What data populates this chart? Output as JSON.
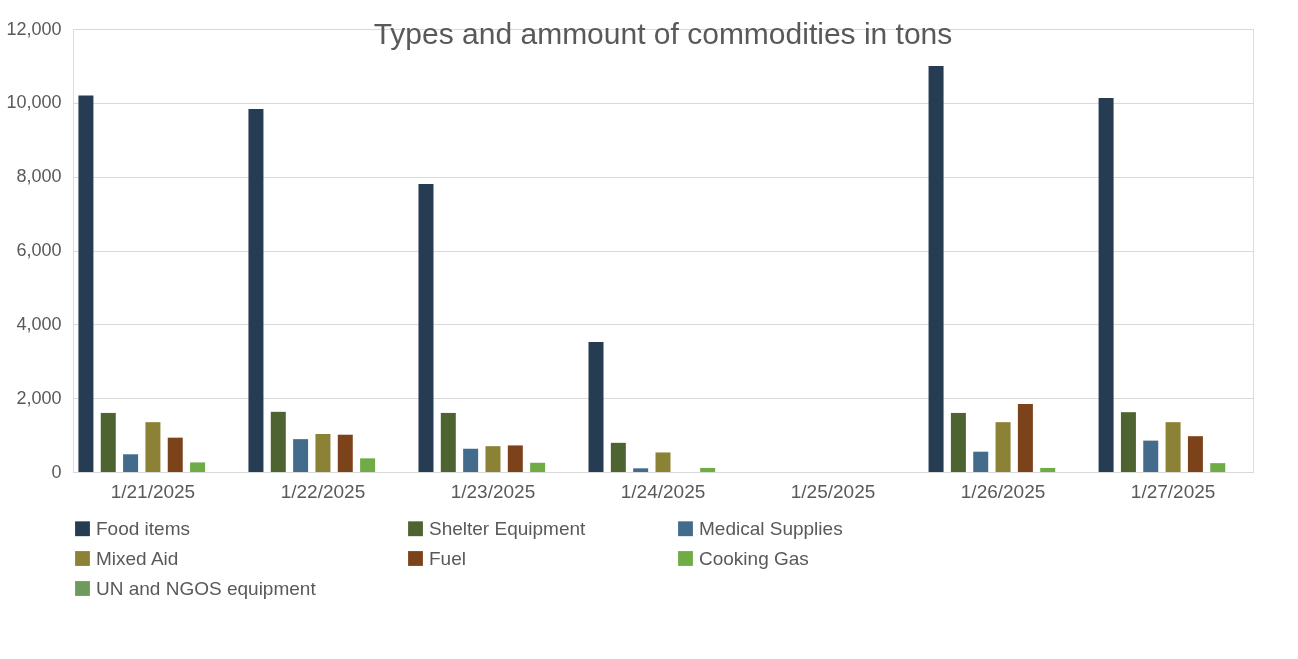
{
  "chart_data": {
    "type": "bar",
    "title": "Types and ammount of commodities in tons",
    "categories": [
      "1/21/2025",
      "1/22/2025",
      "1/23/2025",
      "1/24/2025",
      "1/25/2025",
      "1/26/2025",
      "1/27/2025"
    ],
    "series": [
      {
        "name": "Food items",
        "color": "#263c53",
        "values": [
          10200,
          9830,
          7800,
          3520,
          null,
          11000,
          10130
        ]
      },
      {
        "name": "Shelter Equipment",
        "color": "#4e6430",
        "values": [
          1600,
          1630,
          1600,
          790,
          null,
          1600,
          1620
        ]
      },
      {
        "name": "Medical Supplies",
        "color": "#436c8c",
        "values": [
          480,
          890,
          630,
          100,
          null,
          550,
          850
        ]
      },
      {
        "name": "Mixed Aid",
        "color": "#8c8236",
        "values": [
          1350,
          1030,
          700,
          530,
          null,
          1350,
          1350
        ]
      },
      {
        "name": "Fuel",
        "color": "#7c421a",
        "values": [
          930,
          1010,
          720,
          null,
          null,
          1840,
          970
        ]
      },
      {
        "name": "Cooking Gas",
        "color": "#6fac46",
        "values": [
          260,
          370,
          250,
          110,
          null,
          110,
          240
        ]
      },
      {
        "name": "UN and NGOS equipment",
        "color": "#6e9a5c",
        "values": [
          null,
          null,
          null,
          null,
          null,
          null,
          null
        ]
      }
    ],
    "ylim": [
      0,
      12000
    ],
    "yticks": [
      0,
      {
        "value": 2000,
        "label": "2,000"
      },
      {
        "value": 4000,
        "label": "4,000"
      },
      {
        "value": 6000,
        "label": "6,000"
      },
      {
        "value": 8000,
        "label": "8,000"
      },
      {
        "value": 10000,
        "label": "10,000"
      },
      {
        "value": 12000,
        "label": "12,000"
      }
    ],
    "grid": "y",
    "legend": "bottom"
  }
}
